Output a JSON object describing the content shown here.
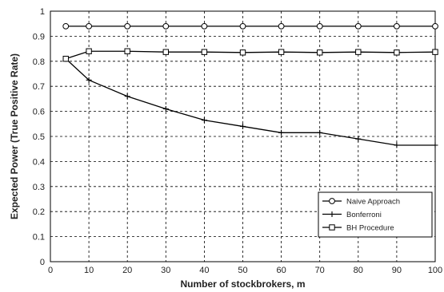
{
  "chart_data": {
    "type": "line",
    "title": "",
    "xlabel": "Number of stockbrokers, m",
    "ylabel": "Expected Power (True Positive Rate)",
    "xlim": [
      0,
      100
    ],
    "ylim": [
      0,
      1
    ],
    "xticks": [
      0,
      10,
      20,
      30,
      40,
      50,
      60,
      70,
      80,
      90,
      100
    ],
    "yticks": [
      0,
      0.1,
      0.2,
      0.3,
      0.4,
      0.5,
      0.6,
      0.7,
      0.8,
      0.9,
      1
    ],
    "grid": true,
    "legend_position": "bottom-right",
    "series": [
      {
        "name": "Naive Approach",
        "marker": "circle",
        "x": [
          4,
          10,
          20,
          30,
          40,
          50,
          60,
          70,
          80,
          90,
          100
        ],
        "y": [
          0.94,
          0.94,
          0.94,
          0.94,
          0.94,
          0.94,
          0.94,
          0.94,
          0.94,
          0.94,
          0.94
        ]
      },
      {
        "name": "Bonferroni",
        "marker": "plus",
        "x": [
          4,
          10,
          20,
          30,
          40,
          50,
          60,
          70,
          80,
          90,
          100
        ],
        "y": [
          0.81,
          0.725,
          0.66,
          0.61,
          0.565,
          0.54,
          0.515,
          0.515,
          0.49,
          0.465,
          0.465
        ]
      },
      {
        "name": "BH Procedure",
        "marker": "square",
        "x": [
          4,
          10,
          20,
          30,
          40,
          50,
          60,
          70,
          80,
          90,
          100
        ],
        "y": [
          0.81,
          0.84,
          0.84,
          0.837,
          0.837,
          0.835,
          0.837,
          0.835,
          0.837,
          0.835,
          0.837
        ]
      }
    ]
  }
}
